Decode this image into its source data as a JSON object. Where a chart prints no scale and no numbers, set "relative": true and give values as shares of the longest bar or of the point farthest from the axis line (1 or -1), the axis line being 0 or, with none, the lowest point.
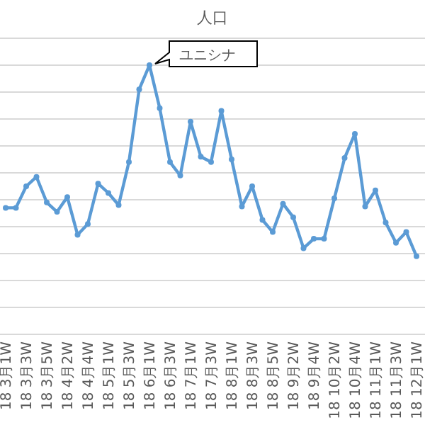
{
  "chart_data": {
    "type": "line",
    "title": "人口",
    "relative": true,
    "grid": "y",
    "marker": "circle",
    "line_style": "solid",
    "categories": [
      "18 3月1W",
      null,
      "18 3月3W",
      null,
      "18 3月5W",
      null,
      "18 4月2W",
      null,
      "18 4月4W",
      null,
      "18 5月1W",
      null,
      "18 5月3W",
      null,
      "18 6月1W",
      null,
      "18 6月3W",
      null,
      "18 7月1W",
      null,
      "18 7月3W",
      null,
      "18 8月1W",
      null,
      "18 8月3W",
      null,
      "18 8月5W",
      null,
      "18 9月2W",
      null,
      "18 9月4W",
      null,
      "18 10月2W",
      null,
      "18 10月4W",
      null,
      "18 11月1W",
      null,
      "18 11月3W",
      null,
      "18 12月1W"
    ],
    "series": [
      {
        "color": "#5b9bd5",
        "values": [
          0.47,
          0.47,
          0.55,
          0.585,
          0.49,
          0.455,
          0.51,
          0.37,
          0.41,
          0.56,
          0.525,
          0.48,
          0.64,
          0.91,
          1,
          0.84,
          0.64,
          0.59,
          0.79,
          0.66,
          0.64,
          0.83,
          0.65,
          0.475,
          0.55,
          0.425,
          0.38,
          0.485,
          0.435,
          0.32,
          0.355,
          0.355,
          0.505,
          0.655,
          0.745,
          0.475,
          0.535,
          0.415,
          0.34,
          0.38,
          0.29
        ]
      }
    ],
    "annotations": [
      {
        "text": "ユニシナ",
        "x": "18 6月1W",
        "y": 1
      }
    ]
  }
}
